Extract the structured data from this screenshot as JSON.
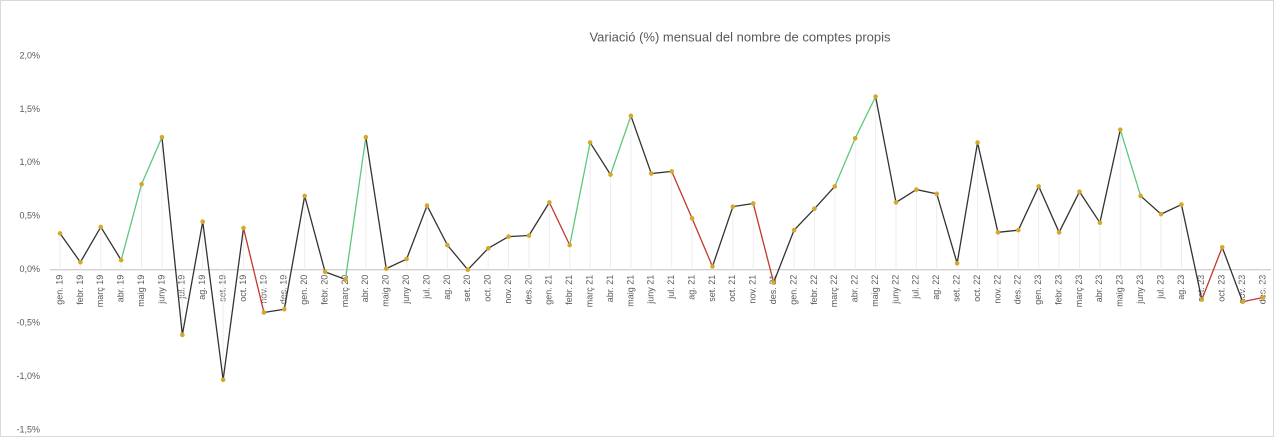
{
  "chart_data": {
    "type": "line",
    "title": "Variació (%) mensual del nombre de comptes propis",
    "categories": [
      "gen. 19",
      "febr. 19",
      "març 19",
      "abr. 19",
      "maig 19",
      "juny 19",
      "jul. 19",
      "ag. 19",
      "set. 19",
      "oct. 19",
      "nov. 19",
      "des. 19",
      "gen. 20",
      "febr. 20",
      "març 20",
      "abr. 20",
      "maig 20",
      "juny 20",
      "jul. 20",
      "ag. 20",
      "set. 20",
      "oct. 20",
      "nov. 20",
      "des. 20",
      "gen. 21",
      "febr. 21",
      "març 21",
      "abr. 21",
      "maig 21",
      "juny 21",
      "jul. 21",
      "ag. 21",
      "set. 21",
      "oct. 21",
      "nov. 21",
      "des. 21",
      "gen. 22",
      "febr. 22",
      "març 22",
      "abr. 22",
      "maig 22",
      "juny 22",
      "jul. 22",
      "ag. 22",
      "set. 22",
      "oct. 22",
      "nov. 22",
      "des. 22",
      "gen. 23",
      "febr. 23",
      "març 23",
      "abr. 23",
      "maig 23",
      "juny 23",
      "jul. 23",
      "ag. 23",
      "set. 23",
      "oct. 23",
      "nov. 23",
      "des. 23"
    ],
    "series": [
      {
        "color": "#333333",
        "marker_color": "#d4a82a",
        "values": [
          0.34,
          0.07,
          0.4,
          0.09,
          0.8,
          1.24,
          -0.61,
          0.45,
          -1.03,
          0.39,
          -0.4,
          -0.37,
          0.69,
          -0.02,
          -0.09,
          1.24,
          0.01,
          0.1,
          0.6,
          0.23,
          0.0,
          0.2,
          0.31,
          0.32,
          0.63,
          0.23,
          1.19,
          0.89,
          1.44,
          0.9,
          0.92,
          0.48,
          0.03,
          0.59,
          0.62,
          -0.12,
          0.37,
          0.57,
          0.78,
          1.23,
          1.62,
          0.63,
          0.75,
          0.71,
          0.06,
          1.19,
          0.35,
          0.37,
          0.78,
          0.35,
          0.73,
          0.44,
          1.31,
          0.69,
          0.52,
          0.61,
          -0.28,
          0.21,
          -0.3,
          -0.26
        ],
        "segment_colors": [
          "#333333",
          "#333333",
          "#333333",
          "#5cc97a",
          "#5cc97a",
          "#333333",
          "#333333",
          "#333333",
          "#333333",
          "#c0392b",
          "#333333",
          "#333333",
          "#333333",
          "#333333",
          "#5cc97a",
          "#333333",
          "#333333",
          "#333333",
          "#333333",
          "#333333",
          "#333333",
          "#333333",
          "#333333",
          "#333333",
          "#c0392b",
          "#5cc97a",
          "#333333",
          "#5cc97a",
          "#333333",
          "#333333",
          "#c0392b",
          "#c0392b",
          "#333333",
          "#333333",
          "#c0392b",
          "#333333",
          "#333333",
          "#333333",
          "#5cc97a",
          "#5cc97a",
          "#333333",
          "#333333",
          "#333333",
          "#333333",
          "#333333",
          "#333333",
          "#333333",
          "#333333",
          "#333333",
          "#333333",
          "#333333",
          "#333333",
          "#5cc97a",
          "#333333",
          "#333333",
          "#333333",
          "#c0392b",
          "#333333",
          "#c0392b"
        ]
      }
    ],
    "ylim": [
      -1.5,
      2.0
    ],
    "yticks": [
      {
        "value": -1.5,
        "label": "-1,5%"
      },
      {
        "value": -1.0,
        "label": "-1,0%"
      },
      {
        "value": -0.5,
        "label": "-0,5%"
      },
      {
        "value": 0,
        "label": "0,0%"
      },
      {
        "value": 0.5,
        "label": "0,5%"
      },
      {
        "value": 1.0,
        "label": "1,0%"
      },
      {
        "value": 1.5,
        "label": "1,5%"
      },
      {
        "value": 2.0,
        "label": "2,0%"
      }
    ],
    "grid": false
  }
}
